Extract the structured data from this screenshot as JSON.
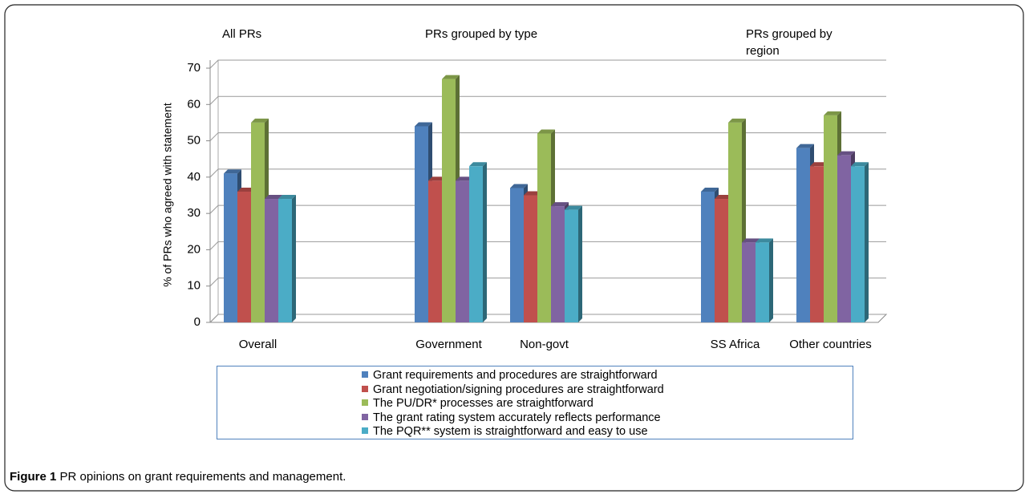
{
  "chart_data": {
    "type": "bar",
    "annotations": [
      "All PRs",
      "PRs grouped by type",
      "PRs grouped by region"
    ],
    "y_label": "% of PRs who agreed with statement",
    "categories": [
      "Overall",
      null,
      "Government",
      "Non-govt",
      null,
      "SS Africa",
      "Other countries"
    ],
    "series": [
      {
        "name": "Grant requirements and procedures are straightforward",
        "color": "#4f81bd",
        "values": [
          41,
          null,
          54,
          37,
          null,
          36,
          48
        ]
      },
      {
        "name": "Grant negotiation/signing procedures are straightforward",
        "color": "#c0504d",
        "values": [
          36,
          null,
          39,
          35,
          null,
          34,
          43
        ]
      },
      {
        "name": "The PU/DR* processes are straightforward",
        "color": "#9bbb59",
        "values": [
          55,
          null,
          67,
          52,
          null,
          55,
          57
        ]
      },
      {
        "name": "The grant rating system accurately reflects performance",
        "color": "#8064a2",
        "values": [
          34,
          null,
          39,
          32,
          null,
          22,
          46
        ]
      },
      {
        "name": "The PQR** system is straightforward and easy to use",
        "color": "#4bacc6",
        "values": [
          34,
          null,
          43,
          31,
          null,
          22,
          43
        ]
      }
    ],
    "ylim": [
      0,
      70
    ],
    "yticks": [
      0,
      10,
      20,
      30,
      40,
      50,
      60,
      70
    ],
    "grid": true,
    "figure_label": "Figure 1",
    "caption": "PR opinions on grant requirements and management."
  }
}
